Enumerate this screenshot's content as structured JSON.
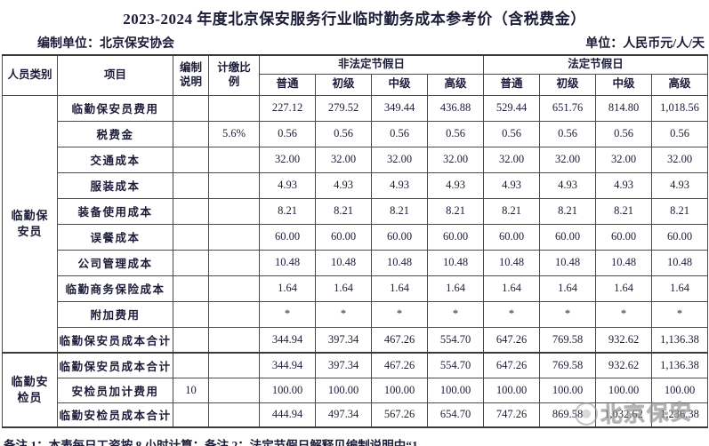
{
  "title": "2023-2024 年度北京保安服务行业临时勤务成本参考价（含税费金）",
  "meta": {
    "left": "编制单位：北京保安协会",
    "right": "单位：人民币元/人/天"
  },
  "table": {
    "headers": {
      "col_person": "人员类别",
      "col_item": "项目",
      "col_note": "编制\n说明",
      "col_ratio": "计缴比\n例",
      "group_nonholiday": "非法定节假日",
      "group_holiday": "法定节假日",
      "levels": [
        "普通",
        "初级",
        "中级",
        "高级"
      ]
    },
    "sections": [
      {
        "category": "临勤保安员",
        "rows": [
          {
            "item": "临勤保安员费用",
            "note": "",
            "ratio": "",
            "values": [
              "227.12",
              "279.52",
              "349.44",
              "436.88",
              "529.44",
              "651.76",
              "814.80",
              "1,018.56"
            ]
          },
          {
            "item": "税费金",
            "note": "",
            "ratio": "5.6%",
            "values": [
              "0.56",
              "0.56",
              "0.56",
              "0.56",
              "0.56",
              "0.56",
              "0.56",
              "0.56"
            ]
          },
          {
            "item": "交通成本",
            "note": "",
            "ratio": "",
            "values": [
              "32.00",
              "32.00",
              "32.00",
              "32.00",
              "32.00",
              "32.00",
              "32.00",
              "32.00"
            ]
          },
          {
            "item": "服装成本",
            "note": "",
            "ratio": "",
            "values": [
              "4.93",
              "4.93",
              "4.93",
              "4.93",
              "4.93",
              "4.93",
              "4.93",
              "4.93"
            ]
          },
          {
            "item": "装备使用成本",
            "note": "",
            "ratio": "",
            "values": [
              "8.21",
              "8.21",
              "8.21",
              "8.21",
              "8.21",
              "8.21",
              "8.21",
              "8.21"
            ]
          },
          {
            "item": "误餐成本",
            "note": "",
            "ratio": "",
            "values": [
              "60.00",
              "60.00",
              "60.00",
              "60.00",
              "60.00",
              "60.00",
              "60.00",
              "60.00"
            ]
          },
          {
            "item": "公司管理成本",
            "note": "",
            "ratio": "",
            "values": [
              "10.48",
              "10.48",
              "10.48",
              "10.48",
              "10.48",
              "10.48",
              "10.48",
              "10.48"
            ]
          },
          {
            "item": "临勤商务保险成本",
            "note": "",
            "ratio": "",
            "values": [
              "1.64",
              "1.64",
              "1.64",
              "1.64",
              "1.64",
              "1.64",
              "1.64",
              "1.64"
            ]
          },
          {
            "item": "附加费用",
            "note": "",
            "ratio": "",
            "values": [
              "*",
              "*",
              "*",
              "*",
              "*",
              "*",
              "*",
              "*"
            ]
          },
          {
            "item": "临勤保安员成本合计",
            "note": "",
            "ratio": "",
            "values": [
              "344.94",
              "397.34",
              "467.26",
              "554.70",
              "647.26",
              "769.58",
              "932.62",
              "1,136.38"
            ]
          }
        ]
      },
      {
        "category": "临勤安检员",
        "rows": [
          {
            "item": "临勤保安员成本合计",
            "note": "",
            "ratio": "",
            "values": [
              "344.94",
              "397.34",
              "467.26",
              "554.70",
              "647.26",
              "769.58",
              "932.62",
              "1,136.38"
            ]
          },
          {
            "item": "安检员加计费用",
            "note": "10",
            "ratio": "",
            "values": [
              "100.00",
              "100.00",
              "100.00",
              "100.00",
              "100.00",
              "100.00",
              "100.00",
              "100.00"
            ]
          },
          {
            "item": "临勤安检员成本合计",
            "note": "",
            "ratio": "",
            "values": [
              "444.94",
              "497.34",
              "567.26",
              "654.70",
              "747.26",
              "869.58",
              "1,032.62",
              "1,236.38"
            ]
          }
        ]
      }
    ]
  },
  "footnote": "备注 1：本表每日工资按 8 小时计算；备注 2：法定节假日解释见编制说明中“1",
  "watermark": {
    "text": "北京保安"
  }
}
